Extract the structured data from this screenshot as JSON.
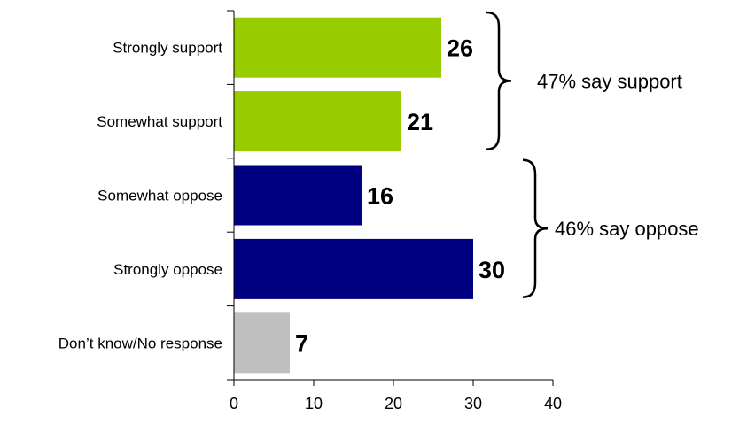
{
  "chart_data": {
    "type": "bar",
    "orientation": "horizontal",
    "categories": [
      "Strongly support",
      "Somewhat support",
      "Somewhat oppose",
      "Strongly oppose",
      "Don’t know/No response"
    ],
    "values": [
      26,
      21,
      16,
      30,
      7
    ],
    "bar_colors": [
      "#99cc00",
      "#99cc00",
      "#000080",
      "#000080",
      "#c0c0c0"
    ],
    "xlim": [
      0,
      40
    ],
    "xticks": [
      0,
      10,
      20,
      30,
      40
    ],
    "grid": false,
    "groups": [
      {
        "label": "47% say support",
        "categories": [
          "Strongly support",
          "Somewhat support"
        ]
      },
      {
        "label": "46% say oppose",
        "categories": [
          "Somewhat oppose",
          "Strongly oppose"
        ]
      }
    ]
  }
}
